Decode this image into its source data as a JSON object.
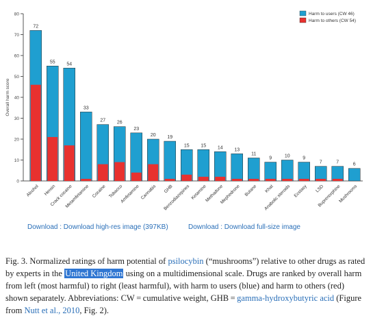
{
  "chart_data": {
    "type": "bar",
    "stacked": true,
    "ylabel": "Overall harm score",
    "ylim": [
      0,
      80
    ],
    "yticks": [
      0,
      10,
      20,
      30,
      40,
      50,
      60,
      70,
      80
    ],
    "grid": false,
    "legend_position": "top-right",
    "categories": [
      "Alcohol",
      "Heroin",
      "Crack cocaine",
      "Metamfetamine",
      "Cocaine",
      "Tobacco",
      "Amfetamine",
      "Cannabis",
      "GHB",
      "Benzodiazepines",
      "Ketamine",
      "Methadone",
      "Mephedrone",
      "Butane",
      "Khat",
      "Anabolic steroids",
      "Ecstasy",
      "LSD",
      "Buprenorphine",
      "Mushrooms"
    ],
    "totals": [
      72,
      55,
      54,
      33,
      27,
      26,
      23,
      20,
      19,
      15,
      15,
      14,
      13,
      11,
      9,
      10,
      9,
      7,
      7,
      6
    ],
    "series": [
      {
        "name": "Harm to users (CW 46)",
        "color": "#1f9fd0",
        "values": [
          26,
          34,
          37,
          32,
          19,
          17,
          19,
          12,
          18,
          12,
          13,
          12,
          12,
          10,
          8,
          9,
          8,
          6,
          6,
          6
        ]
      },
      {
        "name": "Harm to others (CW 54)",
        "color": "#e8312f",
        "values": [
          46,
          21,
          17,
          1,
          8,
          9,
          4,
          8,
          1,
          3,
          2,
          2,
          1,
          1,
          1,
          1,
          1,
          1,
          1,
          0
        ]
      }
    ]
  },
  "links": {
    "highres": "Download : Download high-res image (397KB)",
    "fullsize": "Download : Download full-size image"
  },
  "caption": {
    "part1": "Fig. 3. Normalized ratings of harm potential of ",
    "psilocybin": "psilocybin",
    "part2": " (“mushrooms”) relative to other drugs as rated by experts in the ",
    "uk": "United Kingdom",
    "part3": " using on a multidimensional scale. Drugs are ranked by overall harm from left (most harmful) to right (least harmful), with harm to users (blue) and harm to others (red) shown separately. Abbreviations: CW = cumulative weight, GHB = ",
    "ghb": "gamma-hydroxybutyric acid",
    "part4": " (Figure from ",
    "nutt": "Nutt et al., 2010",
    "part5": ", Fig. 2)."
  }
}
